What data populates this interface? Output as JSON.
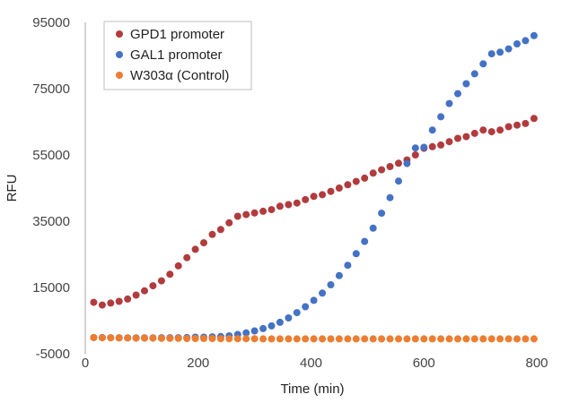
{
  "chart_data": {
    "type": "scatter",
    "xlabel": "Time (min)",
    "ylabel": "RFU",
    "xlim": [
      0,
      800
    ],
    "ylim": [
      -5000,
      95000
    ],
    "xticks": [
      "0",
      "200",
      "400",
      "600",
      "800"
    ],
    "yticks": [
      "95000",
      "75000",
      "55000",
      "35000",
      "15000",
      "-5000"
    ],
    "grid": false,
    "legend_position": "top-left",
    "series": [
      {
        "name": "GPD1 promoter",
        "color": "#b13b3d",
        "x": [
          15,
          30,
          45,
          60,
          75,
          90,
          105,
          120,
          135,
          150,
          165,
          180,
          195,
          210,
          225,
          240,
          255,
          270,
          285,
          300,
          315,
          330,
          345,
          360,
          375,
          390,
          405,
          420,
          435,
          450,
          465,
          480,
          495,
          510,
          525,
          540,
          555,
          570,
          585,
          600,
          615,
          630,
          645,
          660,
          675,
          690,
          705,
          720,
          735,
          750,
          765,
          780,
          795
        ],
        "y": [
          10500,
          9700,
          10300,
          10800,
          11500,
          12700,
          14000,
          15500,
          17000,
          19000,
          21500,
          24000,
          26500,
          28500,
          31000,
          32500,
          34500,
          36500,
          37000,
          37500,
          38000,
          38500,
          39500,
          40000,
          40500,
          41500,
          42500,
          43000,
          44000,
          45000,
          46000,
          47000,
          48000,
          49500,
          50500,
          51500,
          52500,
          53500,
          55000,
          57000,
          57500,
          58000,
          59000,
          60000,
          60500,
          61500,
          62500,
          62000,
          62500,
          63500,
          64000,
          64500,
          66000
        ]
      },
      {
        "name": "GAL1 promoter",
        "color": "#4472c4",
        "x": [
          15,
          30,
          45,
          60,
          75,
          90,
          105,
          120,
          135,
          150,
          165,
          180,
          195,
          210,
          225,
          240,
          255,
          270,
          285,
          300,
          315,
          330,
          345,
          360,
          375,
          390,
          405,
          420,
          435,
          450,
          465,
          480,
          495,
          510,
          525,
          540,
          555,
          570,
          585,
          600,
          615,
          630,
          645,
          660,
          675,
          690,
          705,
          720,
          735,
          750,
          765,
          780,
          795
        ],
        "y": [
          -100,
          -100,
          -150,
          -150,
          -200,
          -200,
          -200,
          -200,
          -150,
          -150,
          -150,
          -100,
          0,
          0,
          100,
          200,
          400,
          800,
          1300,
          1900,
          2600,
          3400,
          4500,
          5800,
          7400,
          9200,
          11100,
          13300,
          15800,
          18600,
          21700,
          25200,
          28900,
          32900,
          37400,
          42100,
          47100,
          52400,
          57100,
          57300,
          62500,
          66500,
          70500,
          73500,
          76500,
          79500,
          82500,
          85500,
          86000,
          87000,
          88500,
          89500,
          91000
        ]
      },
      {
        "name": "W303α (Control)",
        "color": "#ed7d31",
        "x": [
          15,
          30,
          45,
          60,
          75,
          90,
          105,
          120,
          135,
          150,
          165,
          180,
          195,
          210,
          225,
          240,
          255,
          270,
          285,
          300,
          315,
          330,
          345,
          360,
          375,
          390,
          405,
          420,
          435,
          450,
          465,
          480,
          495,
          510,
          525,
          540,
          555,
          570,
          585,
          600,
          615,
          630,
          645,
          660,
          675,
          690,
          705,
          720,
          735,
          750,
          765,
          780,
          795
        ],
        "y": [
          -100,
          -200,
          -200,
          -250,
          -250,
          -300,
          -300,
          -300,
          -350,
          -350,
          -350,
          -400,
          -400,
          -400,
          -400,
          -450,
          -450,
          -450,
          -450,
          -450,
          -500,
          -500,
          -500,
          -500,
          -500,
          -500,
          -500,
          -500,
          -500,
          -500,
          -500,
          -500,
          -500,
          -500,
          -500,
          -500,
          -500,
          -500,
          -500,
          -500,
          -500,
          -500,
          -500,
          -500,
          -500,
          -500,
          -500,
          -500,
          -500,
          -500,
          -500,
          -500,
          -500
        ]
      }
    ]
  }
}
